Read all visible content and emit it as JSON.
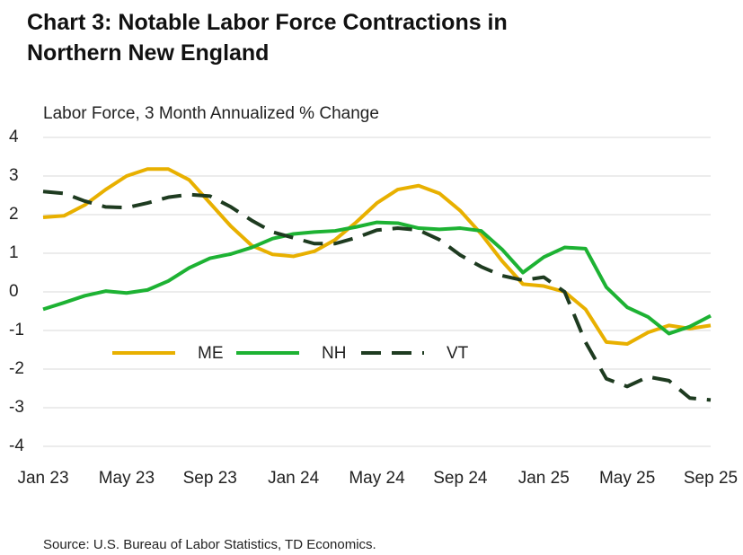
{
  "chart_data": {
    "type": "line",
    "title": "Chart 3: Notable Labor Force Contractions in Northern New England",
    "y_label": "Labor Force, 3 Month Annualized % Change",
    "source": "Source: U.S. Bureau of Labor Statistics, TD Economics.",
    "categories": [
      "Jan 23",
      null,
      null,
      null,
      "May 23",
      null,
      null,
      null,
      "Sep 23",
      null,
      null,
      null,
      "Jan 24",
      null,
      null,
      null,
      "May 24",
      null,
      null,
      null,
      "Sep 24",
      null,
      null,
      null,
      "Jan 25",
      null,
      null,
      null,
      "May 25",
      null,
      null,
      null,
      "Sep 25"
    ],
    "ylim": [
      -4,
      4
    ],
    "yticks": [
      -4,
      -3,
      -2,
      -1,
      0,
      1,
      2,
      3,
      4
    ],
    "grid": true,
    "series": [
      {
        "name": "ME",
        "color": "#e8b000",
        "dashed": false,
        "values": [
          1.93,
          1.97,
          2.25,
          2.65,
          3.0,
          3.18,
          3.18,
          2.9,
          2.3,
          1.7,
          1.2,
          0.97,
          0.92,
          1.05,
          1.35,
          1.8,
          2.3,
          2.65,
          2.75,
          2.55,
          2.1,
          1.5,
          0.8,
          0.2,
          0.15,
          0.0,
          -0.45,
          -1.3,
          -1.35,
          -1.05,
          -0.87,
          -0.95,
          -0.87
        ]
      },
      {
        "name": "NH",
        "color": "#1db233",
        "dashed": false,
        "values": [
          -0.45,
          -0.28,
          -0.1,
          0.02,
          -0.03,
          0.05,
          0.28,
          0.62,
          0.87,
          0.98,
          1.15,
          1.38,
          1.5,
          1.55,
          1.58,
          1.68,
          1.8,
          1.78,
          1.65,
          1.62,
          1.65,
          1.58,
          1.1,
          0.5,
          0.9,
          1.15,
          1.12,
          0.12,
          -0.4,
          -0.65,
          -1.08,
          -0.9,
          -0.62
        ]
      },
      {
        "name": "VT",
        "color": "#1e3b20",
        "dashed": true,
        "values": [
          2.6,
          2.55,
          2.35,
          2.2,
          2.18,
          2.3,
          2.45,
          2.52,
          2.48,
          2.2,
          1.85,
          1.55,
          1.4,
          1.25,
          1.25,
          1.4,
          1.6,
          1.65,
          1.6,
          1.35,
          0.95,
          0.65,
          0.42,
          0.3,
          0.38,
          0.0,
          -1.3,
          -2.25,
          -2.45,
          -2.2,
          -2.3,
          -2.75,
          -2.8
        ]
      }
    ]
  }
}
